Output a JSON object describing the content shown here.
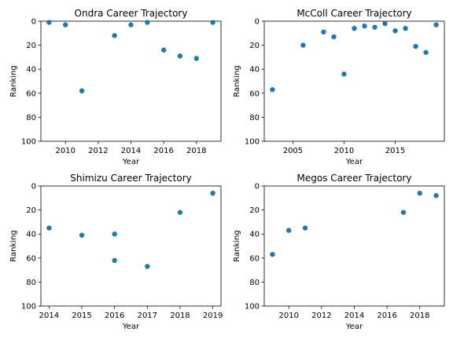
{
  "chart_data": [
    {
      "type": "scatter",
      "title": "Ondra Career Trajectory",
      "xlabel": "Year",
      "ylabel": "Ranking",
      "xlim": [
        2008.5,
        2019.5
      ],
      "ylim": [
        100,
        0
      ],
      "y_inverted": true,
      "xticks": [
        2010,
        2012,
        2014,
        2016,
        2018
      ],
      "yticks": [
        0,
        20,
        40,
        60,
        80,
        100
      ],
      "grid": false,
      "color": "#1f77b4",
      "x": [
        2009,
        2010,
        2011,
        2013,
        2014,
        2015,
        2016,
        2017,
        2018,
        2019
      ],
      "y": [
        1,
        3,
        58,
        12,
        3,
        1,
        24,
        29,
        31,
        1
      ]
    },
    {
      "type": "scatter",
      "title": "McColl Career Trajectory",
      "xlabel": "Year",
      "ylabel": "Ranking",
      "xlim": [
        2002.2,
        2019.8
      ],
      "ylim": [
        100,
        0
      ],
      "y_inverted": true,
      "xticks": [
        2005,
        2010,
        2015
      ],
      "yticks": [
        0,
        20,
        40,
        60,
        80,
        100
      ],
      "grid": false,
      "color": "#1f77b4",
      "x": [
        2003,
        2006,
        2008,
        2009,
        2010,
        2011,
        2012,
        2013,
        2014,
        2015,
        2016,
        2017,
        2018,
        2019
      ],
      "y": [
        57,
        20,
        9,
        13,
        44,
        6,
        4,
        5,
        2,
        8,
        6,
        21,
        26,
        3
      ]
    },
    {
      "type": "scatter",
      "title": "Shimizu Career Trajectory",
      "xlabel": "Year",
      "ylabel": "Ranking",
      "xlim": [
        2013.75,
        2019.25
      ],
      "ylim": [
        100,
        0
      ],
      "y_inverted": true,
      "xticks": [
        2014,
        2015,
        2016,
        2017,
        2018,
        2019
      ],
      "yticks": [
        0,
        20,
        40,
        60,
        80,
        100
      ],
      "grid": false,
      "color": "#1f77b4",
      "x": [
        2014,
        2015,
        2016,
        2016,
        2017,
        2018,
        2019
      ],
      "y": [
        35,
        41,
        40,
        62,
        67,
        22,
        6
      ]
    },
    {
      "type": "scatter",
      "title": "Megos Career Trajectory",
      "xlabel": "Year",
      "ylabel": "Ranking",
      "xlim": [
        2008.5,
        2019.5
      ],
      "ylim": [
        100,
        0
      ],
      "y_inverted": true,
      "xticks": [
        2010,
        2012,
        2014,
        2016,
        2018
      ],
      "yticks": [
        0,
        20,
        40,
        60,
        80,
        100
      ],
      "grid": false,
      "color": "#1f77b4",
      "x": [
        2009,
        2010,
        2011,
        2017,
        2018,
        2019
      ],
      "y": [
        57,
        37,
        35,
        22,
        6,
        8
      ]
    }
  ]
}
